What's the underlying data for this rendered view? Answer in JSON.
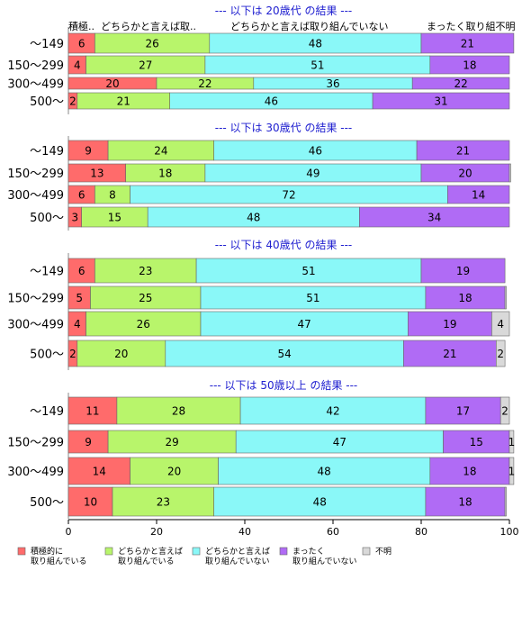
{
  "chart_data": {
    "type": "bar",
    "orientation": "horizontal",
    "stacked": true,
    "xlim": [
      0,
      100
    ],
    "x_ticks": [
      "0",
      "20",
      "40",
      "60",
      "80",
      "100"
    ],
    "categories": [
      "～149",
      "150～299",
      "300～499",
      "500～"
    ],
    "column_headers": [
      "積極..",
      "どちらかと言えば取..",
      "どちらかと言えば取り組んでいない",
      "まったく取り組不明"
    ],
    "legend": [
      {
        "label": "積極的に\n取り組んでいる",
        "color": "#ff6b6b"
      },
      {
        "label": "どちらかと言えば\n取り組んでいる",
        "color": "#b8f56b"
      },
      {
        "label": "どちらかと言えば\n取り組んでいない",
        "color": "#8af8f8"
      },
      {
        "label": "まったく\n取り組んでいない",
        "color": "#b06bf5"
      },
      {
        "label": "不明",
        "color": "#d9d9d9"
      }
    ],
    "groups": [
      {
        "title": "--- 以下は 20歳代 の結果 ---",
        "rows": [
          {
            "values": [
              6,
              26,
              48,
              21,
              0
            ],
            "labels": [
              "6",
              "26",
              "48",
              "21",
              ""
            ]
          },
          {
            "values": [
              4,
              27,
              51,
              18,
              0
            ],
            "labels": [
              "4",
              "27",
              "51",
              "18",
              ""
            ]
          },
          {
            "values": [
              20,
              22,
              36,
              22,
              0
            ],
            "labels": [
              "20",
              "22",
              "36",
              "22",
              ""
            ]
          },
          {
            "values": [
              2,
              21,
              46,
              31,
              0
            ],
            "labels": [
              "2",
              "21",
              "46",
              "31",
              ""
            ]
          }
        ]
      },
      {
        "title": "--- 以下は 30歳代 の結果 ---",
        "rows": [
          {
            "values": [
              9,
              24,
              46,
              21,
              0
            ],
            "labels": [
              "9",
              "24",
              "46",
              "21",
              ""
            ]
          },
          {
            "values": [
              13,
              18,
              49,
              20,
              0.3
            ],
            "labels": [
              "13",
              "18",
              "49",
              "20",
              ""
            ]
          },
          {
            "values": [
              6,
              8,
              72,
              14,
              0
            ],
            "labels": [
              "6",
              "8",
              "72",
              "14",
              ""
            ]
          },
          {
            "values": [
              3,
              15,
              48,
              34,
              0
            ],
            "labels": [
              "3",
              "15",
              "48",
              "34",
              ""
            ]
          }
        ]
      },
      {
        "title": "--- 以下は 40歳代 の結果 ---",
        "rows": [
          {
            "values": [
              6,
              23,
              51,
              19,
              0
            ],
            "labels": [
              "6",
              "23",
              "51",
              "19",
              ""
            ]
          },
          {
            "values": [
              5,
              25,
              51,
              18,
              0.3
            ],
            "labels": [
              "5",
              "25",
              "51",
              "18",
              ""
            ]
          },
          {
            "values": [
              4,
              26,
              47,
              19,
              4
            ],
            "labels": [
              "4",
              "26",
              "47",
              "19",
              "4"
            ]
          },
          {
            "values": [
              2,
              20,
              54,
              21,
              2
            ],
            "labels": [
              "2",
              "20",
              "54",
              "21",
              "2"
            ]
          }
        ]
      },
      {
        "title": "--- 以下は 50歳以上 の結果 ---",
        "rows": [
          {
            "values": [
              11,
              28,
              42,
              17,
              2
            ],
            "labels": [
              "11",
              "28",
              "42",
              "17",
              "2"
            ]
          },
          {
            "values": [
              9,
              29,
              47,
              15,
              1
            ],
            "labels": [
              "9",
              "29",
              "47",
              "15",
              "1"
            ]
          },
          {
            "values": [
              14,
              20,
              48,
              18,
              1
            ],
            "labels": [
              "14",
              "20",
              "48",
              "18",
              "1"
            ]
          },
          {
            "values": [
              10,
              23,
              48,
              18,
              0.3
            ],
            "labels": [
              "10",
              "23",
              "48",
              "18",
              ""
            ]
          }
        ]
      }
    ]
  }
}
